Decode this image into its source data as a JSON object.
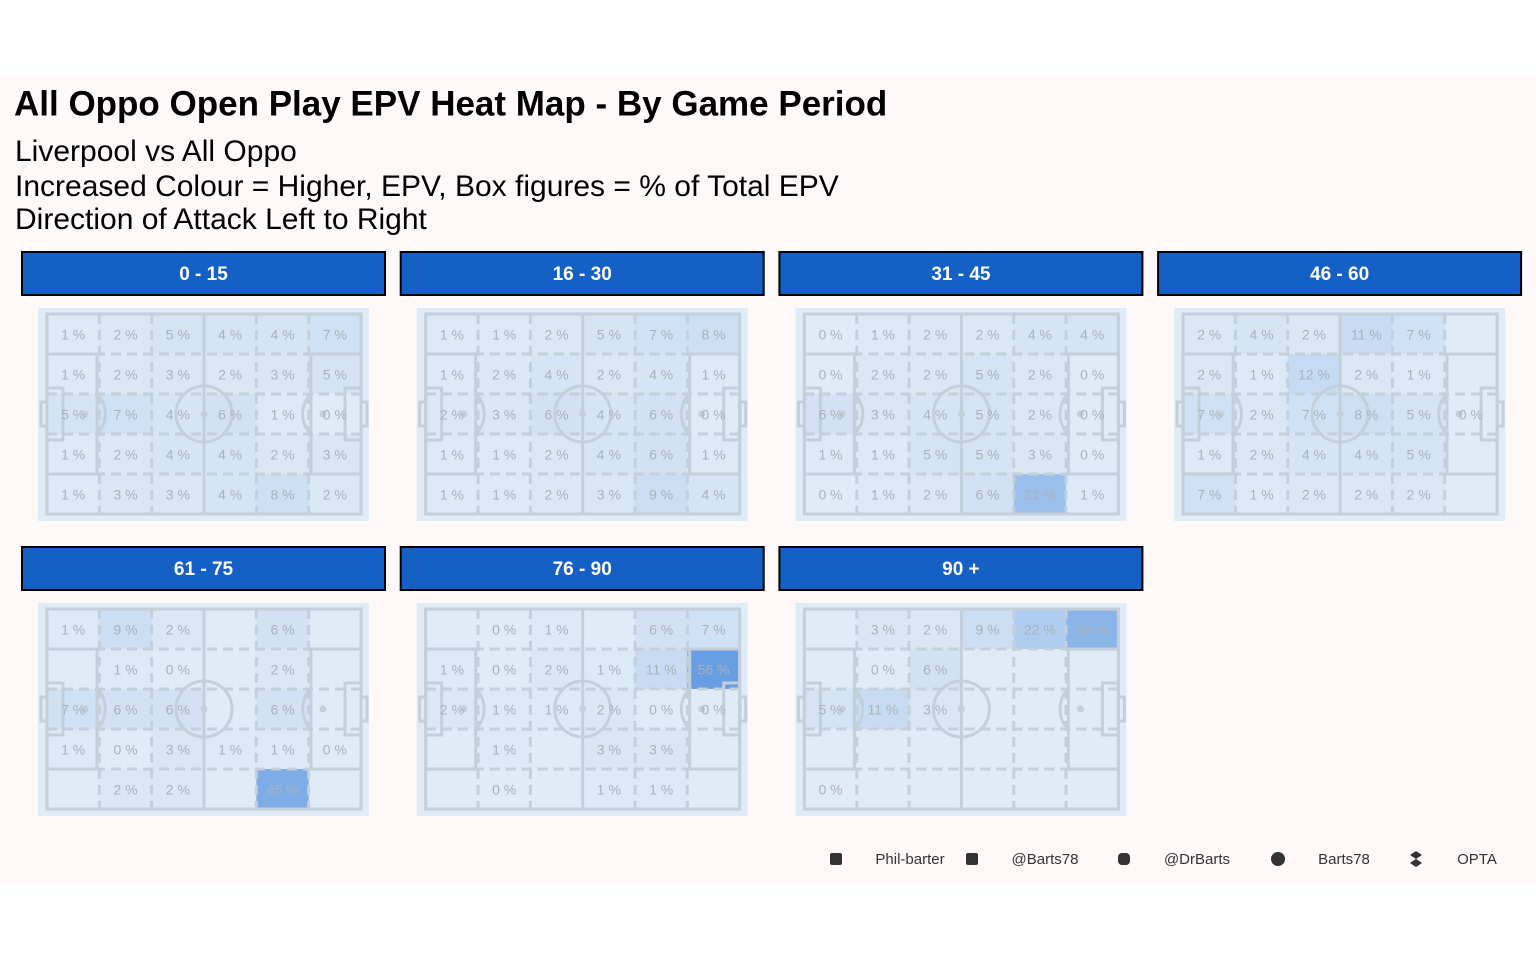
{
  "header": {
    "title": "All Oppo  Open Play EPV Heat Map - By Game Period",
    "subtitle": [
      "Liverpool vs All Oppo",
      "Increased Colour = Higher, EPV, Box figures = % of Total EPV",
      "Direction of Attack Left to Right"
    ]
  },
  "chart_data": [
    {
      "type": "heatmap",
      "title": "0 - 15",
      "values": [
        [
          1,
          2,
          5,
          4,
          4,
          7
        ],
        [
          1,
          2,
          3,
          2,
          3,
          5
        ],
        [
          5,
          7,
          4,
          6,
          1,
          0
        ],
        [
          1,
          2,
          4,
          4,
          2,
          3
        ],
        [
          1,
          3,
          3,
          4,
          8,
          2
        ]
      ],
      "value_labels": [
        [
          "1 %",
          "2 %",
          "5 %",
          "4 %",
          "4 %",
          "7 %"
        ],
        [
          "1 %",
          "2 %",
          "3 %",
          "2 %",
          "3 %",
          "5 %"
        ],
        [
          "5 %",
          "7 %",
          "4 %",
          "6 %",
          "1 %",
          "0 %"
        ],
        [
          "1 %",
          "2 %",
          "4 %",
          "4 %",
          "2 %",
          "3 %"
        ],
        [
          "1 %",
          "3 %",
          "3 %",
          "4 %",
          "8 %",
          "2 %"
        ]
      ]
    },
    {
      "type": "heatmap",
      "title": "16 - 30",
      "values": [
        [
          1,
          1,
          2,
          5,
          7,
          8
        ],
        [
          1,
          2,
          4,
          2,
          4,
          1
        ],
        [
          2,
          3,
          6,
          4,
          6,
          0
        ],
        [
          1,
          1,
          2,
          4,
          6,
          1
        ],
        [
          1,
          1,
          2,
          3,
          9,
          4
        ]
      ],
      "value_labels": [
        [
          "1 %",
          "1 %",
          "2 %",
          "5 %",
          "7 %",
          "8 %"
        ],
        [
          "1 %",
          "2 %",
          "4 %",
          "2 %",
          "4 %",
          "1 %"
        ],
        [
          "2 %",
          "3 %",
          "6 %",
          "4 %",
          "6 %",
          "0 %"
        ],
        [
          "1 %",
          "1 %",
          "2 %",
          "4 %",
          "6 %",
          "1 %"
        ],
        [
          "1 %",
          "1 %",
          "2 %",
          "3 %",
          "9 %",
          "4 %"
        ]
      ]
    },
    {
      "type": "heatmap",
      "title": "31 - 45",
      "values": [
        [
          0,
          1,
          2,
          2,
          4,
          4
        ],
        [
          0,
          2,
          2,
          5,
          2,
          0
        ],
        [
          6,
          3,
          4,
          5,
          2,
          0
        ],
        [
          1,
          1,
          5,
          5,
          3,
          0
        ],
        [
          0,
          1,
          2,
          6,
          31,
          1
        ]
      ],
      "value_labels": [
        [
          "0 %",
          "1 %",
          "2 %",
          "2 %",
          "4 %",
          "4 %"
        ],
        [
          "0 %",
          "2 %",
          "2 %",
          "5 %",
          "2 %",
          "0 %"
        ],
        [
          "6 %",
          "3 %",
          "4 %",
          "5 %",
          "2 %",
          "0 %"
        ],
        [
          "1 %",
          "1 %",
          "5 %",
          "5 %",
          "3 %",
          "0 %"
        ],
        [
          "0 %",
          "1 %",
          "2 %",
          "6 %",
          "31 %",
          "1 %"
        ]
      ]
    },
    {
      "type": "heatmap",
      "title": "46 - 60",
      "values": [
        [
          2,
          4,
          2,
          11,
          7,
          null
        ],
        [
          2,
          1,
          12,
          2,
          1,
          null
        ],
        [
          7,
          2,
          7,
          8,
          5,
          0
        ],
        [
          1,
          2,
          4,
          4,
          5,
          null
        ],
        [
          7,
          1,
          2,
          2,
          2,
          null
        ]
      ],
      "value_labels": [
        [
          "2 %",
          "4 %",
          "2 %",
          "11 %",
          "7 %",
          null
        ],
        [
          "2 %",
          "1 %",
          "12 %",
          "2 %",
          "1 %",
          null
        ],
        [
          "7 %",
          "2 %",
          "7 %",
          "8 %",
          "5 %",
          "0 %"
        ],
        [
          "1 %",
          "2 %",
          "4 %",
          "4 %",
          "5 %",
          null
        ],
        [
          "7 %",
          "1 %",
          "2 %",
          "2 %",
          "2 %",
          null
        ]
      ]
    },
    {
      "type": "heatmap",
      "title": "61 - 75",
      "values": [
        [
          1,
          9,
          2,
          null,
          6,
          null
        ],
        [
          null,
          1,
          0,
          null,
          2,
          null
        ],
        [
          7,
          6,
          6,
          null,
          6,
          null
        ],
        [
          1,
          0,
          3,
          1,
          1,
          0
        ],
        [
          null,
          2,
          2,
          null,
          45,
          null
        ]
      ],
      "value_labels": [
        [
          "1 %",
          "9 %",
          "2 %",
          null,
          "6 %",
          null
        ],
        [
          null,
          "1 %",
          "0 %",
          null,
          "2 %",
          null
        ],
        [
          "7 %",
          "6 %",
          "6 %",
          null,
          "6 %",
          null
        ],
        [
          "1 %",
          "0 %",
          "3 %",
          "1 %",
          "1 %",
          "0 %"
        ],
        [
          null,
          "2 %",
          "2 %",
          null,
          "45 %",
          null
        ]
      ]
    },
    {
      "type": "heatmap",
      "title": "76 - 90",
      "values": [
        [
          null,
          0,
          1,
          null,
          6,
          7
        ],
        [
          1,
          0,
          2,
          1,
          11,
          56
        ],
        [
          2,
          1,
          1,
          2,
          0,
          0
        ],
        [
          null,
          1,
          null,
          3,
          3,
          null
        ],
        [
          null,
          0,
          null,
          1,
          1,
          null
        ]
      ],
      "value_labels": [
        [
          null,
          "0 %",
          "1 %",
          null,
          "6 %",
          "7 %"
        ],
        [
          "1 %",
          "0 %",
          "2 %",
          "1 %",
          "11 %",
          "56 %"
        ],
        [
          "2 %",
          "1 %",
          "1 %",
          "2 %",
          "0 %",
          "0 %"
        ],
        [
          null,
          "1 %",
          null,
          "3 %",
          "3 %",
          null
        ],
        [
          null,
          "0 %",
          null,
          "1 %",
          "1 %",
          null
        ]
      ]
    },
    {
      "type": "heatmap",
      "title": "90 +",
      "values": [
        [
          null,
          3,
          2,
          9,
          22,
          39
        ],
        [
          null,
          0,
          6,
          null,
          null,
          null
        ],
        [
          5,
          11,
          3,
          null,
          null,
          null
        ],
        [
          null,
          null,
          null,
          null,
          null,
          null
        ],
        [
          0,
          null,
          null,
          null,
          null,
          null
        ]
      ],
      "value_labels": [
        [
          null,
          "3 %",
          "2 %",
          "9 %",
          "22 %",
          "39 %"
        ],
        [
          null,
          "0 %",
          "6 %",
          null,
          null,
          null
        ],
        [
          "5 %",
          "11 %",
          "3 %",
          null,
          null,
          null
        ],
        [
          null,
          null,
          null,
          null,
          null,
          null
        ],
        [
          "0 %",
          null,
          null,
          null,
          null,
          null
        ]
      ]
    }
  ],
  "footer": [
    "Phil-barter",
    "@Barts78",
    "@DrBarts",
    "Barts78",
    "OPTA"
  ]
}
